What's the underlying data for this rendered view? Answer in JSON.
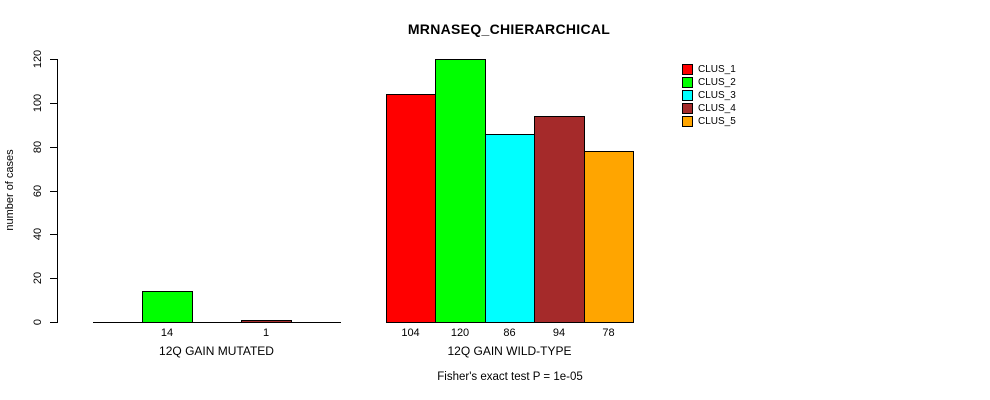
{
  "chart_data": {
    "type": "bar",
    "title": "MRNASEQ_CHIERARCHICAL",
    "ylabel": "number of cases",
    "xlabel": "",
    "ylim": [
      0,
      120
    ],
    "yticks": [
      0,
      20,
      40,
      60,
      80,
      100,
      120
    ],
    "grid": false,
    "legend_position": "top-right",
    "axis_color": "#000000",
    "background_color": "#FFFFFF",
    "legend": [
      {
        "label": "CLUS_1",
        "color": "#FF0000"
      },
      {
        "label": "CLUS_2",
        "color": "#00FF00"
      },
      {
        "label": "CLUS_3",
        "color": "#00FFFF"
      },
      {
        "label": "CLUS_4",
        "color": "#A52A2A"
      },
      {
        "label": "CLUS_5",
        "color": "#FFA500"
      }
    ],
    "groups": [
      {
        "label": "12Q GAIN MUTATED",
        "values": [
          0,
          14,
          0,
          1,
          0
        ]
      },
      {
        "label": "12Q GAIN WILD-TYPE",
        "values": [
          104,
          120,
          86,
          94,
          78
        ]
      }
    ],
    "bar_value_labels": [
      [
        "",
        "14",
        "",
        "1",
        ""
      ],
      [
        "104",
        "120",
        "86",
        "94",
        "78"
      ]
    ],
    "footer": "Fisher's exact test P = 1e-05"
  }
}
